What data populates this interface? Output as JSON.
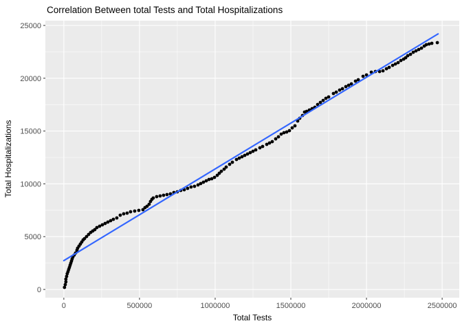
{
  "title": "Correlation Between total Tests and Total Hospitalizations",
  "chart_data": {
    "type": "scatter",
    "title": "Correlation Between total Tests and Total Hospitalizations",
    "xlabel": "Total Tests",
    "ylabel": "Total Hospitalizations",
    "x_ticks": [
      0,
      500000,
      1000000,
      1500000,
      2000000,
      2500000
    ],
    "x_tick_labels": [
      "0",
      "500000",
      "1000000",
      "1500000",
      "2000000",
      "2500000"
    ],
    "y_ticks": [
      0,
      5000,
      10000,
      15000,
      20000,
      25000
    ],
    "y_tick_labels": [
      "0",
      "5000",
      "10000",
      "15000",
      "20000",
      "25000"
    ],
    "xlim": [
      -122000,
      2613000
    ],
    "ylim": [
      -780,
      25455
    ],
    "grid": "major+minor on gray panel",
    "legend": "none",
    "series": [
      {
        "name": "observations",
        "marker": "filled-circle",
        "color": "#000000",
        "points": [
          [
            4500,
            195
          ],
          [
            9100,
            455
          ],
          [
            13600,
            715
          ],
          [
            13600,
            975
          ],
          [
            18200,
            1240
          ],
          [
            22700,
            1495
          ],
          [
            27300,
            1690
          ],
          [
            31800,
            1890
          ],
          [
            36400,
            2080
          ],
          [
            40900,
            2280
          ],
          [
            45500,
            2475
          ],
          [
            50000,
            2670
          ],
          [
            54500,
            2865
          ],
          [
            59100,
            3060
          ],
          [
            68200,
            3255
          ],
          [
            77300,
            3450
          ],
          [
            86400,
            3710
          ],
          [
            90900,
            3905
          ],
          [
            100000,
            4100
          ],
          [
            109100,
            4295
          ],
          [
            118200,
            4490
          ],
          [
            127300,
            4690
          ],
          [
            136400,
            4815
          ],
          [
            150000,
            5010
          ],
          [
            163600,
            5210
          ],
          [
            177300,
            5400
          ],
          [
            190900,
            5535
          ],
          [
            204500,
            5665
          ],
          [
            218200,
            5860
          ],
          [
            236400,
            5990
          ],
          [
            254500,
            6120
          ],
          [
            272700,
            6250
          ],
          [
            290900,
            6380
          ],
          [
            309100,
            6510
          ],
          [
            327300,
            6640
          ],
          [
            350000,
            6770
          ],
          [
            372700,
            7030
          ],
          [
            395500,
            7160
          ],
          [
            418200,
            7225
          ],
          [
            440900,
            7355
          ],
          [
            468200,
            7420
          ],
          [
            495500,
            7485
          ],
          [
            522700,
            7550
          ],
          [
            536400,
            7745
          ],
          [
            550000,
            7875
          ],
          [
            563600,
            8070
          ],
          [
            572700,
            8330
          ],
          [
            581800,
            8530
          ],
          [
            590900,
            8660
          ],
          [
            613600,
            8790
          ],
          [
            636400,
            8855
          ],
          [
            659100,
            8920
          ],
          [
            681800,
            8985
          ],
          [
            704500,
            9050
          ],
          [
            727300,
            9180
          ],
          [
            750000,
            9245
          ],
          [
            772700,
            9375
          ],
          [
            795500,
            9440
          ],
          [
            818200,
            9570
          ],
          [
            840900,
            9700
          ],
          [
            863600,
            9765
          ],
          [
            886400,
            9895
          ],
          [
            904500,
            10025
          ],
          [
            922700,
            10155
          ],
          [
            940900,
            10285
          ],
          [
            959100,
            10415
          ],
          [
            977300,
            10480
          ],
          [
            995500,
            10610
          ],
          [
            1013600,
            10805
          ],
          [
            1027300,
            11000
          ],
          [
            1040900,
            11195
          ],
          [
            1059100,
            11390
          ],
          [
            1072700,
            11590
          ],
          [
            1095500,
            11850
          ],
          [
            1113600,
            12045
          ],
          [
            1140900,
            12305
          ],
          [
            1159100,
            12435
          ],
          [
            1177300,
            12565
          ],
          [
            1195500,
            12695
          ],
          [
            1213600,
            12825
          ],
          [
            1231800,
            12955
          ],
          [
            1250000,
            13085
          ],
          [
            1268200,
            13215
          ],
          [
            1295500,
            13410
          ],
          [
            1313600,
            13540
          ],
          [
            1340900,
            13735
          ],
          [
            1359100,
            13865
          ],
          [
            1377300,
            13995
          ],
          [
            1400000,
            14255
          ],
          [
            1418200,
            14450
          ],
          [
            1436400,
            14710
          ],
          [
            1454500,
            14845
          ],
          [
            1472700,
            14910
          ],
          [
            1490900,
            15040
          ],
          [
            1509100,
            15300
          ],
          [
            1527300,
            15495
          ],
          [
            1545500,
            15950
          ],
          [
            1559100,
            16210
          ],
          [
            1577300,
            16470
          ],
          [
            1590900,
            16795
          ],
          [
            1604500,
            16860
          ],
          [
            1622700,
            16990
          ],
          [
            1640900,
            17120
          ],
          [
            1659100,
            17250
          ],
          [
            1677300,
            17510
          ],
          [
            1695500,
            17705
          ],
          [
            1713600,
            17900
          ],
          [
            1731800,
            18100
          ],
          [
            1750000,
            18230
          ],
          [
            1781800,
            18555
          ],
          [
            1800000,
            18685
          ],
          [
            1822700,
            18880
          ],
          [
            1840900,
            19010
          ],
          [
            1863600,
            19205
          ],
          [
            1881800,
            19335
          ],
          [
            1900000,
            19465
          ],
          [
            1927300,
            19725
          ],
          [
            1945500,
            19855
          ],
          [
            1977300,
            20180
          ],
          [
            2000000,
            20310
          ],
          [
            2031800,
            20570
          ],
          [
            2059100,
            20635
          ],
          [
            2086400,
            20635
          ],
          [
            2109100,
            20700
          ],
          [
            2131800,
            20895
          ],
          [
            2150000,
            21025
          ],
          [
            2172700,
            21220
          ],
          [
            2190900,
            21350
          ],
          [
            2209100,
            21480
          ],
          [
            2227300,
            21680
          ],
          [
            2245500,
            21810
          ],
          [
            2259100,
            21940
          ],
          [
            2272700,
            22135
          ],
          [
            2290900,
            22265
          ],
          [
            2309100,
            22460
          ],
          [
            2327300,
            22590
          ],
          [
            2345500,
            22720
          ],
          [
            2363600,
            22850
          ],
          [
            2381800,
            23045
          ],
          [
            2395500,
            23175
          ],
          [
            2413600,
            23240
          ],
          [
            2431800,
            23305
          ],
          [
            2468200,
            23370
          ]
        ]
      }
    ],
    "regression_line": {
      "name": "linear fit",
      "x": [
        0,
        2473000
      ],
      "y": [
        2730,
        24200
      ],
      "color": "#3366FF"
    }
  },
  "colors": {
    "panel_bg": "#EBEBEB",
    "grid_major": "#FFFFFF",
    "grid_minor": "#FFFFFF",
    "tick_mark": "#333333",
    "tick_label": "#4d4d4d",
    "point": "#000000",
    "fit_line": "#3366FF",
    "title_text": "#000000"
  }
}
